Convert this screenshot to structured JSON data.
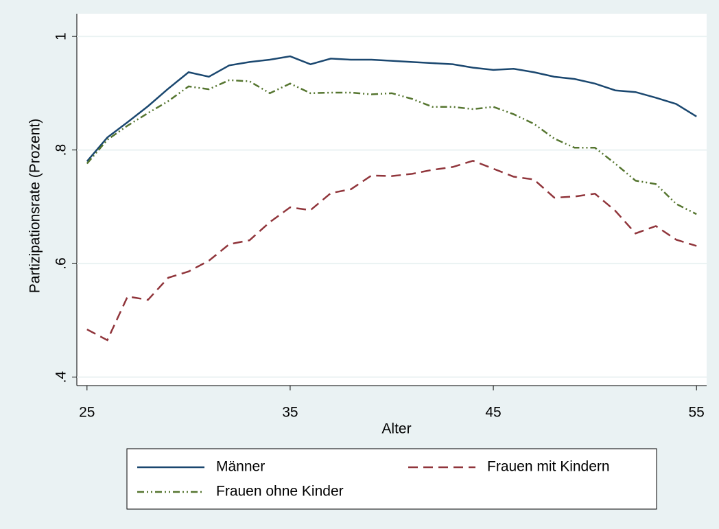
{
  "chart_data": {
    "type": "line",
    "x_label": "Alter",
    "y_label": "Partizipationsrate (Prozent)",
    "x": [
      25,
      26,
      27,
      28,
      29,
      30,
      31,
      32,
      33,
      34,
      35,
      36,
      37,
      38,
      39,
      40,
      41,
      42,
      43,
      44,
      45,
      46,
      47,
      48,
      49,
      50,
      51,
      52,
      53,
      54,
      55
    ],
    "series": [
      {
        "name": "Männer",
        "color": "#1a476f",
        "style": "solid",
        "values": [
          0.78,
          0.822,
          0.849,
          0.877,
          0.908,
          0.937,
          0.929,
          0.949,
          0.955,
          0.959,
          0.965,
          0.951,
          0.961,
          0.959,
          0.959,
          0.957,
          0.955,
          0.953,
          0.951,
          0.945,
          0.941,
          0.943,
          0.937,
          0.929,
          0.925,
          0.917,
          0.905,
          0.902,
          0.892,
          0.881,
          0.859
        ]
      },
      {
        "name": "Frauen mit Kindern",
        "color": "#90353b",
        "style": "dash",
        "values": [
          0.484,
          0.465,
          0.542,
          0.536,
          0.575,
          0.586,
          0.605,
          0.634,
          0.641,
          0.673,
          0.699,
          0.694,
          0.724,
          0.731,
          0.755,
          0.754,
          0.758,
          0.765,
          0.77,
          0.781,
          0.767,
          0.753,
          0.748,
          0.716,
          0.718,
          0.723,
          0.693,
          0.653,
          0.666,
          0.642,
          0.631
        ]
      },
      {
        "name": "Frauen ohne Kinder",
        "color": "#55752f",
        "style": "dash-dot",
        "values": [
          0.776,
          0.818,
          0.843,
          0.865,
          0.886,
          0.912,
          0.907,
          0.923,
          0.921,
          0.9,
          0.917,
          0.9,
          0.901,
          0.901,
          0.898,
          0.9,
          0.89,
          0.876,
          0.876,
          0.872,
          0.876,
          0.863,
          0.846,
          0.82,
          0.804,
          0.804,
          0.776,
          0.746,
          0.74,
          0.705,
          0.687
        ]
      }
    ],
    "xlim": [
      24.5,
      55.5
    ],
    "xticks": [
      25,
      35,
      45,
      55
    ],
    "ylim": [
      0.385,
      1.04
    ],
    "yticks": [
      {
        "value": 0.4,
        "label": ".4"
      },
      {
        "value": 0.6,
        "label": ".6"
      },
      {
        "value": 0.8,
        "label": ".8"
      },
      1
    ],
    "grid": true,
    "legend": "bottom"
  }
}
